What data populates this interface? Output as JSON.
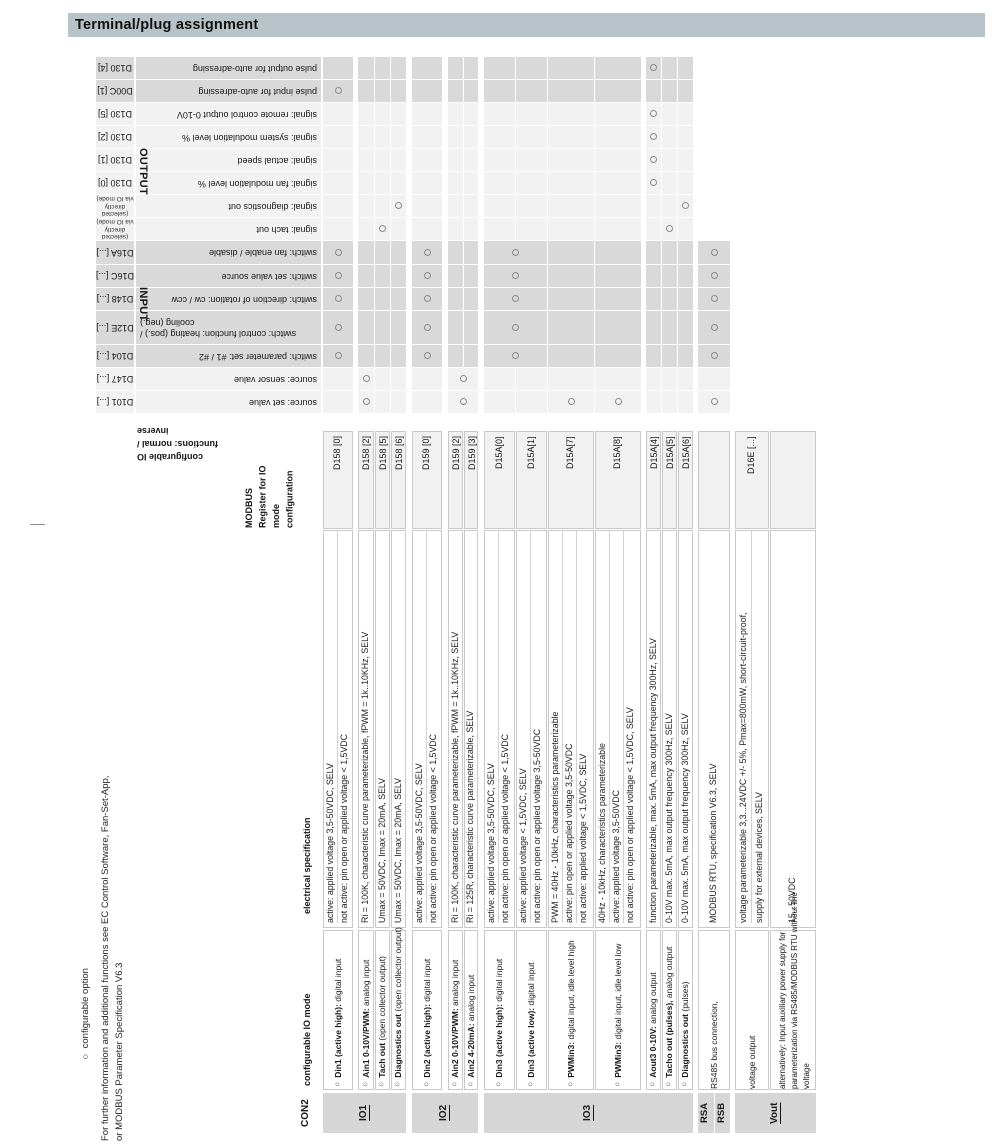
{
  "title": "Terminal/plug assignment",
  "connector_label": "CON2",
  "notes": {
    "legend": "○ configurable option",
    "info_lines": [
      "For further information and additional functions see EC Control Software, Fan-Set-App,",
      "or MODBUS Parameter Specification V6.3"
    ]
  },
  "colors": {
    "title_bar": "#b7c2c9",
    "shade_dark": "#d9d9d9",
    "shade_light": "#f2f2f2",
    "group_bar": "#d6d6d6",
    "band_border": "#c9c9c9",
    "circle_stroke": "#8b8b8b",
    "text": "#161616"
  },
  "column_headers": {
    "io_mode": "configurable IO mode",
    "elec_spec": "electrical specification",
    "modbus_lines": [
      "MODBUS",
      "Register for IO",
      "mode",
      "configuration"
    ],
    "functions_label_lines": [
      "configurable IO",
      "functions: normal /",
      "inverse"
    ],
    "output": "OUTPUT",
    "input": "INPUT"
  },
  "functions": [
    {
      "code": "D130 [4]",
      "name": "pulse output for auto-adressing",
      "shade": "g",
      "circles": [
        "aout3"
      ]
    },
    {
      "code": "D00C [1]",
      "name": "pulse input for auto-adressing",
      "shade": "g",
      "circles": [
        "din1"
      ]
    },
    {
      "code": "D130 [5]",
      "name": "signal: remote control output 0-10V",
      "shade": "l",
      "circles": [
        "aout3"
      ]
    },
    {
      "code": "D130 [2]",
      "name": "signal: system modulation level %",
      "shade": "l",
      "circles": [
        "aout3"
      ]
    },
    {
      "code": "D130 [1]",
      "name": "signal: actual speed",
      "shade": "l",
      "circles": [
        "aout3"
      ]
    },
    {
      "code": "D130 [0]",
      "name": "signal: fan modulation level %",
      "shade": "l",
      "circles": [
        "aout3"
      ]
    },
    {
      "code_lines": [
        "(selected directly",
        "via IO mode)"
      ],
      "name": "signal: diagnostics out",
      "shade": "l",
      "circles": [
        "diag",
        "diagp"
      ]
    },
    {
      "code_lines": [
        "(selected directly",
        "via IO mode)"
      ],
      "name": "signal: tach out",
      "shade": "l",
      "circles": [
        "tach",
        "tacho"
      ]
    },
    {
      "code": "D16A [...]",
      "name": "switch: fan enable / disable",
      "shade": "g",
      "circles": [
        "din1",
        "din2",
        "din3+din3l",
        "rs"
      ],
      "merges": [
        [
          "din3",
          "din3l"
        ]
      ]
    },
    {
      "code": "D16C [...]",
      "name": "switch: set value source",
      "shade": "g",
      "circles": [
        "din1",
        "din2",
        "din3+din3l",
        "rs"
      ],
      "merges": [
        [
          "din3",
          "din3l"
        ]
      ]
    },
    {
      "code": "D148 [...]",
      "name": "switch: direction of rotation: cw / ccw",
      "shade": "g",
      "circles": [
        "din1",
        "din2",
        "din3+din3l",
        "rs"
      ],
      "merges": [
        [
          "din3",
          "din3l"
        ]
      ]
    },
    {
      "code": "D12E [...]",
      "name_lines": [
        "switch: control function: heating (pos.) /",
        "cooling (neg.)"
      ],
      "align_end": true,
      "shade": "g",
      "circles": [
        "din1",
        "din2",
        "din3+din3l",
        "rs"
      ],
      "merges": [
        [
          "din3",
          "din3l"
        ]
      ]
    },
    {
      "code": "D104 [...]",
      "name": "switch: parameter set: #1 / #2",
      "shade": "g",
      "circles": [
        "din1",
        "din2",
        "din3+din3l",
        "rs"
      ],
      "merges": [
        [
          "din3",
          "din3l"
        ]
      ]
    },
    {
      "code": "D147 [...]",
      "name": "source: sensor value",
      "shade": "l",
      "circles": [
        "ain1",
        "ain2+ain2b"
      ],
      "merges": [
        [
          "ain2",
          "ain2b"
        ]
      ]
    },
    {
      "code": "D101 [...]",
      "name": "source: set value",
      "shade": "l",
      "circles": [
        "ain1",
        "ain2+ain2b",
        "pwm3h",
        "pwm3l",
        "rs"
      ],
      "merges": [
        [
          "ain2",
          "ain2b"
        ]
      ]
    }
  ],
  "pins": [
    {
      "id": "din1",
      "extent": "full",
      "register": "D158 [0]",
      "specs": [
        "active: applied voltage 3,5-50VDC, SELV",
        "not active: pin open or applied voltage < 1,5VDC"
      ],
      "label": {
        "marker": true,
        "bold": "Din1 (active high):",
        "rest": " digital input"
      }
    },
    {
      "id": "ain1",
      "extent": "full",
      "register": "D158 [2]",
      "specs": [
        "Ri = 100K, characteristic curve parameterizable, fPWM = 1k..10KHz, SELV"
      ],
      "label": {
        "marker": true,
        "bold": "Ain1 0-10V/PWM:",
        "rest": " analog input"
      }
    },
    {
      "id": "tach",
      "extent": "full",
      "register": "D158 [5]",
      "specs": [
        "Umax = 50VDC, Imax = 20mA, SELV"
      ],
      "label": {
        "marker": true,
        "bold": "Tach out",
        "rest": " (open collector output)"
      }
    },
    {
      "id": "diag",
      "extent": "full",
      "register": "D158 [6]",
      "specs": [
        "Umax = 50VDC, Imax = 20mA, SELV"
      ],
      "label": {
        "marker": true,
        "bold": "Diagnostics out",
        "rest": " (open collector output)"
      }
    },
    {
      "id": "din2",
      "extent": "full",
      "register": "D159 [0]",
      "specs": [
        "active: applied voltage 3,5-50VDC, SELV",
        "not active: pin open or applied voltage < 1,5VDC"
      ],
      "label": {
        "marker": true,
        "bold": "Din2 (active high):",
        "rest": " digital input"
      }
    },
    {
      "id": "ain2",
      "extent": "full",
      "register": "D159 [2]",
      "specs": [
        "Ri = 100K, characteristic curve parameterizable, fPWM = 1k..10KHz, SELV"
      ],
      "label": {
        "marker": true,
        "bold": "Ain2 0-10V/PWM:",
        "rest": " analog input"
      }
    },
    {
      "id": "ain2b",
      "extent": "full",
      "register": "D159 [3]",
      "specs": [
        "Ri = 125R, characteristic curve parameterizable, SELV"
      ],
      "label": {
        "marker": true,
        "bold": "Ain2 4-20mA:",
        "rest": " analog input"
      }
    },
    {
      "id": "din3",
      "extent": "full",
      "register": "D15A[0]",
      "specs": [
        "active: applied voltage 3,5-50VDC, SELV",
        "not active: pin open or applied voltage < 1,5VDC"
      ],
      "label": {
        "marker": true,
        "bold": "Din3 (active high):",
        "rest": " digital input"
      }
    },
    {
      "id": "din3l",
      "extent": "full",
      "register": "D15A[1]",
      "specs": [
        "active: applied voltage < 1,5VDC, SELV",
        "not active: pin open or applied voltage 3,5-50VDC"
      ],
      "label": {
        "marker": true,
        "bold": "Din3 (active low):",
        "rest": " digital input"
      }
    },
    {
      "id": "pwm3h",
      "extent": "full",
      "register": "D15A[7]",
      "specs": [
        "PWM = 40Hz - 10kHz, characteristics parameterizable",
        "active: pin open or applied voltage 3,5-50VDC",
        "not active: applied voltage < 1,5VDC, SELV"
      ],
      "label": {
        "marker": true,
        "bold": "PWMin3:",
        "rest": " digital input, idle level high"
      }
    },
    {
      "id": "pwm3l",
      "extent": "full",
      "register": "D15A[8]",
      "specs": [
        "40Hz - 10kHz, characteristics parameterizable",
        "active: applied voltage 3,5-50VDC",
        "not active: pin open or applied voltage < 1,5VDC, SELV"
      ],
      "label": {
        "marker": true,
        "bold": "PWMin3:",
        "rest": " digital input, idle level low"
      }
    },
    {
      "id": "aout3",
      "extent": "full",
      "register": "D15A[4]",
      "specs": [
        "function parameterizable, max. 5mA, max output frequency 300Hz, SELV"
      ],
      "label": {
        "marker": true,
        "bold": "Aout3 0-10V:",
        "rest": " analog output"
      }
    },
    {
      "id": "tacho",
      "extent": "full",
      "register": "D15A[5]",
      "specs": [
        "0-10V max. 5mA, max output frequency 300Hz, SELV"
      ],
      "label": {
        "marker": true,
        "bold": "Tacho out (pulses),",
        "rest": " analog output"
      }
    },
    {
      "id": "diagp",
      "extent": "full",
      "register": "D15A[6]",
      "specs": [
        "0-10V max. 5mA, max output frequency 300Hz, SELV"
      ],
      "label": {
        "marker": true,
        "bold": "Diagnostics out",
        "rest": " (pulses)"
      }
    },
    {
      "id": "rs",
      "extent": "switch",
      "register": "",
      "specs": [
        "MODBUS RTU, specification V6.3, SELV"
      ],
      "label": {
        "marker": false,
        "bold": "",
        "rest": "RS485 bus connection,"
      }
    },
    {
      "id": "vout1",
      "extent": "none",
      "register": "D16E [...]",
      "specs": [
        "voltage parameterizable 3,3...24VDC +/- 5%, Pmax=800mW, short-circuit-proof,",
        "supply for external devices, SELV"
      ],
      "label": {
        "marker": false,
        "bold": "",
        "rest": "voltage output"
      }
    },
    {
      "id": "vout2",
      "extent": "none",
      "register": "",
      "specs": [
        "15...50VDC"
      ],
      "label": {
        "marker": false,
        "lines": [
          "alternatively: Input auxiliary power supply for",
          "parameterization via RS485/MODBUS RTU without line",
          "voltage"
        ]
      }
    }
  ],
  "groups": [
    {
      "labels": [
        "IO1"
      ],
      "from": "din1",
      "to": "diag"
    },
    {
      "labels": [
        "IO2"
      ],
      "from": "din2",
      "to": "ain2b"
    },
    {
      "labels": [
        "IO3"
      ],
      "from": "din3",
      "to": "diagp"
    },
    {
      "labels": [
        "RSA",
        "RSB"
      ],
      "from": "rs",
      "to": "rs",
      "split": true
    },
    {
      "labels": [
        "Vout"
      ],
      "from": "vout1",
      "to": "vout2"
    }
  ]
}
